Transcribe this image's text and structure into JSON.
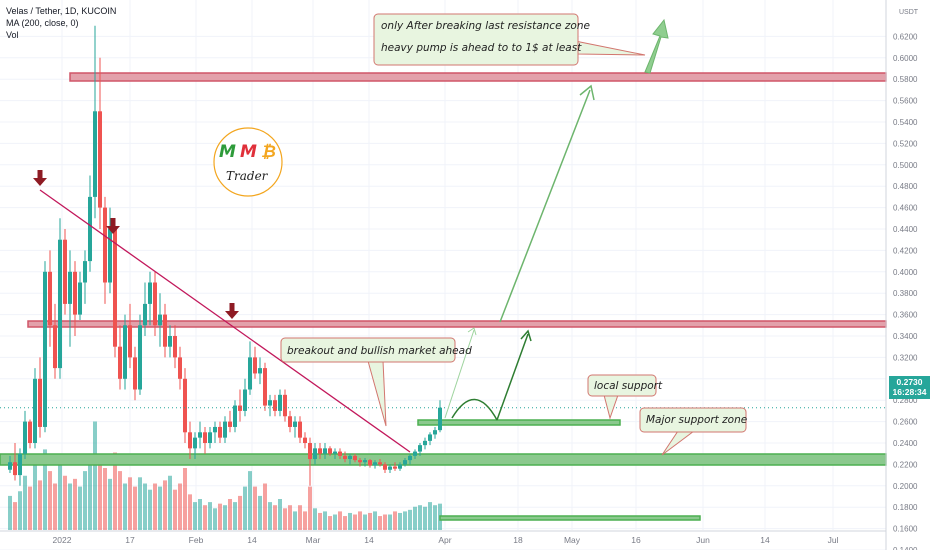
{
  "header": {
    "title": "Velas / Tether, 1D, KUCOIN",
    "indicator": "MA (200, close, 0)",
    "volume": "Vol"
  },
  "price_badge": {
    "price": "0.2730",
    "countdown": "16:28:34"
  },
  "logo": {
    "letters": [
      "M",
      "M",
      "₿"
    ],
    "subtitle": "Trader",
    "colors": [
      "#2e9b3a",
      "#e0303a",
      "#f3a61f"
    ]
  },
  "annotations": {
    "top_line1": "only After breaking last resistance zone",
    "top_line2": "heavy pump is ahead to to 1$ at least",
    "breakout": "breakout and bullish market ahead",
    "local_support": "local support",
    "major_support": "Major support zone"
  },
  "colors": {
    "up": "#26a69a",
    "down": "#ef5350",
    "resistance": "#d05668",
    "support": "#4caf50",
    "trendline": "#c2185b",
    "arrow": "#6db56d",
    "marker": "#8e1b24"
  },
  "chart_data": {
    "type": "candlestick",
    "symbol": "Velas / Tether",
    "timeframe": "1D",
    "exchange": "KUCOIN",
    "y_axis": {
      "unit": "USDT",
      "range": [
        0.14,
        0.62
      ],
      "tick_labels": [
        "0.6200",
        "0.6000",
        "0.5800",
        "0.5600",
        "0.5400",
        "0.5200",
        "0.5000",
        "0.4800",
        "0.4600",
        "0.4400",
        "0.4200",
        "0.4000",
        "0.3800",
        "0.3600",
        "0.3400",
        "0.3200",
        "0.3000",
        "0.2800",
        "0.2600",
        "0.2400",
        "0.2200",
        "0.2000",
        "0.1800",
        "0.1600",
        "0.1400"
      ]
    },
    "x_axis": {
      "tick_labels": [
        "2022",
        "17",
        "Feb",
        "14",
        "Mar",
        "14",
        "Apr",
        "18",
        "May",
        "16",
        "Jun",
        "14",
        "Jul"
      ]
    },
    "last_price": 0.273,
    "ohlc": [
      [
        0.215,
        0.228,
        0.212,
        0.222
      ],
      [
        0.222,
        0.24,
        0.205,
        0.21
      ],
      [
        0.21,
        0.235,
        0.2,
        0.23
      ],
      [
        0.23,
        0.27,
        0.225,
        0.26
      ],
      [
        0.26,
        0.262,
        0.235,
        0.24
      ],
      [
        0.24,
        0.31,
        0.235,
        0.3
      ],
      [
        0.3,
        0.32,
        0.245,
        0.255
      ],
      [
        0.255,
        0.41,
        0.25,
        0.4
      ],
      [
        0.4,
        0.42,
        0.33,
        0.35
      ],
      [
        0.35,
        0.37,
        0.3,
        0.31
      ],
      [
        0.31,
        0.45,
        0.3,
        0.43
      ],
      [
        0.43,
        0.44,
        0.36,
        0.37
      ],
      [
        0.37,
        0.42,
        0.33,
        0.4
      ],
      [
        0.4,
        0.41,
        0.34,
        0.36
      ],
      [
        0.36,
        0.4,
        0.355,
        0.39
      ],
      [
        0.39,
        0.42,
        0.37,
        0.41
      ],
      [
        0.41,
        0.49,
        0.4,
        0.47
      ],
      [
        0.47,
        0.63,
        0.45,
        0.55
      ],
      [
        0.55,
        0.6,
        0.44,
        0.46
      ],
      [
        0.46,
        0.47,
        0.37,
        0.39
      ],
      [
        0.39,
        0.46,
        0.38,
        0.44
      ],
      [
        0.44,
        0.45,
        0.32,
        0.33
      ],
      [
        0.33,
        0.35,
        0.29,
        0.3
      ],
      [
        0.3,
        0.36,
        0.29,
        0.35
      ],
      [
        0.35,
        0.37,
        0.31,
        0.32
      ],
      [
        0.32,
        0.33,
        0.28,
        0.29
      ],
      [
        0.29,
        0.36,
        0.285,
        0.35
      ],
      [
        0.35,
        0.39,
        0.34,
        0.37
      ],
      [
        0.37,
        0.4,
        0.35,
        0.39
      ],
      [
        0.39,
        0.4,
        0.34,
        0.35
      ],
      [
        0.35,
        0.38,
        0.33,
        0.36
      ],
      [
        0.36,
        0.37,
        0.32,
        0.33
      ],
      [
        0.33,
        0.35,
        0.32,
        0.34
      ],
      [
        0.34,
        0.35,
        0.31,
        0.32
      ],
      [
        0.32,
        0.33,
        0.29,
        0.3
      ],
      [
        0.3,
        0.31,
        0.24,
        0.25
      ],
      [
        0.25,
        0.26,
        0.225,
        0.235
      ],
      [
        0.235,
        0.25,
        0.225,
        0.245
      ],
      [
        0.245,
        0.26,
        0.235,
        0.25
      ],
      [
        0.25,
        0.255,
        0.23,
        0.24
      ],
      [
        0.24,
        0.255,
        0.235,
        0.25
      ],
      [
        0.25,
        0.26,
        0.24,
        0.255
      ],
      [
        0.255,
        0.26,
        0.24,
        0.245
      ],
      [
        0.245,
        0.265,
        0.24,
        0.26
      ],
      [
        0.26,
        0.27,
        0.25,
        0.255
      ],
      [
        0.255,
        0.28,
        0.25,
        0.275
      ],
      [
        0.275,
        0.29,
        0.26,
        0.27
      ],
      [
        0.27,
        0.3,
        0.265,
        0.29
      ],
      [
        0.29,
        0.335,
        0.285,
        0.32
      ],
      [
        0.32,
        0.33,
        0.3,
        0.305
      ],
      [
        0.305,
        0.32,
        0.295,
        0.31
      ],
      [
        0.31,
        0.315,
        0.27,
        0.275
      ],
      [
        0.275,
        0.285,
        0.265,
        0.28
      ],
      [
        0.28,
        0.285,
        0.265,
        0.27
      ],
      [
        0.27,
        0.29,
        0.265,
        0.285
      ],
      [
        0.285,
        0.29,
        0.26,
        0.265
      ],
      [
        0.265,
        0.27,
        0.25,
        0.255
      ],
      [
        0.255,
        0.265,
        0.245,
        0.26
      ],
      [
        0.26,
        0.265,
        0.24,
        0.245
      ],
      [
        0.245,
        0.25,
        0.235,
        0.24
      ],
      [
        0.24,
        0.245,
        0.2,
        0.225
      ],
      [
        0.225,
        0.24,
        0.22,
        0.235
      ],
      [
        0.235,
        0.24,
        0.225,
        0.23
      ],
      [
        0.23,
        0.24,
        0.225,
        0.235
      ],
      [
        0.235,
        0.237,
        0.228,
        0.23
      ],
      [
        0.23,
        0.235,
        0.225,
        0.232
      ],
      [
        0.232,
        0.235,
        0.225,
        0.228
      ],
      [
        0.228,
        0.232,
        0.222,
        0.225
      ],
      [
        0.225,
        0.23,
        0.22,
        0.228
      ],
      [
        0.228,
        0.23,
        0.222,
        0.224
      ],
      [
        0.224,
        0.226,
        0.218,
        0.222
      ],
      [
        0.222,
        0.226,
        0.218,
        0.224
      ],
      [
        0.224,
        0.225,
        0.217,
        0.219
      ],
      [
        0.219,
        0.224,
        0.216,
        0.222
      ],
      [
        0.222,
        0.225,
        0.218,
        0.22
      ],
      [
        0.22,
        0.222,
        0.212,
        0.215
      ],
      [
        0.215,
        0.22,
        0.212,
        0.218
      ],
      [
        0.218,
        0.222,
        0.214,
        0.216
      ],
      [
        0.216,
        0.222,
        0.214,
        0.22
      ],
      [
        0.22,
        0.226,
        0.218,
        0.224
      ],
      [
        0.224,
        0.23,
        0.22,
        0.228
      ],
      [
        0.228,
        0.234,
        0.225,
        0.232
      ],
      [
        0.232,
        0.24,
        0.228,
        0.238
      ],
      [
        0.238,
        0.245,
        0.234,
        0.242
      ],
      [
        0.242,
        0.25,
        0.238,
        0.248
      ],
      [
        0.248,
        0.255,
        0.244,
        0.252
      ],
      [
        0.252,
        0.28,
        0.25,
        0.273
      ]
    ],
    "volume": [
      22,
      18,
      25,
      35,
      28,
      46,
      32,
      52,
      38,
      30,
      44,
      35,
      30,
      33,
      28,
      38,
      42,
      70,
      47,
      40,
      33,
      50,
      38,
      30,
      34,
      28,
      34,
      30,
      26,
      30,
      28,
      32,
      35,
      26,
      30,
      40,
      23,
      18,
      20,
      16,
      18,
      14,
      17,
      16,
      20,
      18,
      22,
      28,
      38,
      28,
      22,
      30,
      18,
      16,
      20,
      14,
      16,
      12,
      16,
      12,
      28,
      14,
      11,
      12,
      9,
      10,
      12,
      9,
      11,
      10,
      12,
      10,
      11,
      12,
      9,
      10,
      10,
      12,
      11,
      12,
      13,
      15,
      16,
      15,
      18,
      16,
      17
    ]
  }
}
